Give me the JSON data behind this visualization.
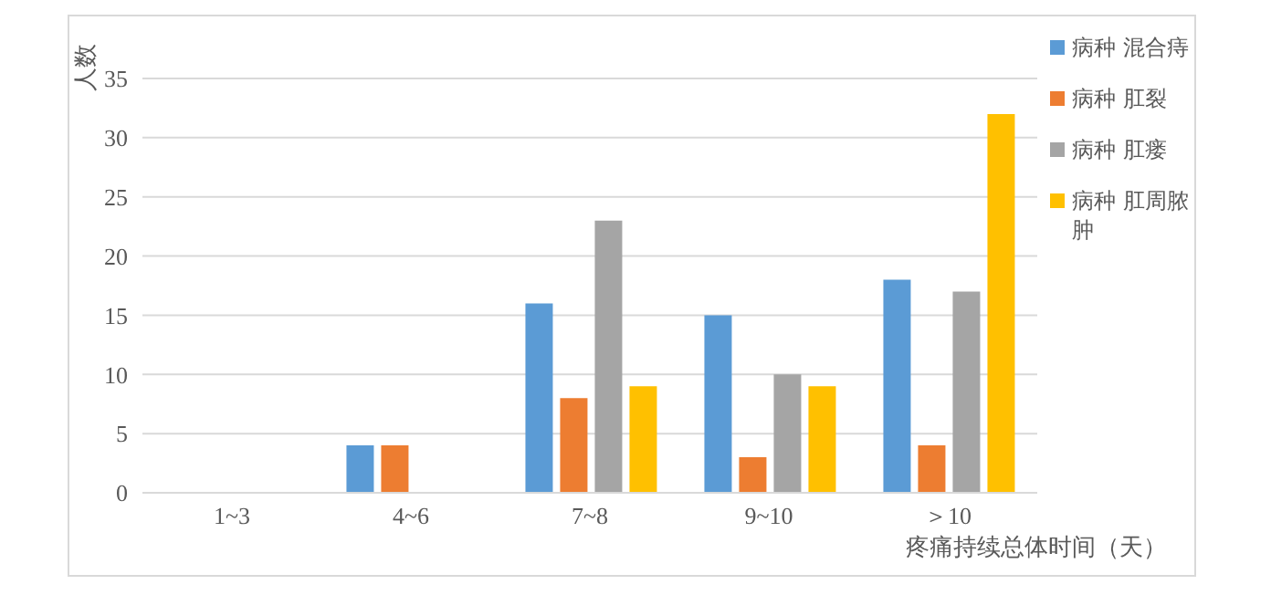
{
  "chart_data": {
    "type": "bar",
    "xlabel": "疼痛持续总体时间（天）",
    "ylabel": "人数",
    "categories": [
      "1~3",
      "4~6",
      "7~8",
      "9~10",
      "＞10"
    ],
    "series": [
      {
        "name": "病种 混合痔",
        "color": "#5b9bd5",
        "values": [
          null,
          4,
          16,
          15,
          18
        ]
      },
      {
        "name": "病种 肛裂",
        "color": "#ed7d31",
        "values": [
          null,
          4,
          8,
          3,
          4
        ]
      },
      {
        "name": "病种 肛瘘",
        "color": "#a5a5a5",
        "values": [
          null,
          null,
          23,
          10,
          17
        ]
      },
      {
        "name": "病种 肛周脓肿",
        "color": "#ffc000",
        "values": [
          null,
          null,
          9,
          9,
          32
        ]
      }
    ],
    "ylim": [
      0,
      35
    ],
    "yticks": [
      0,
      5,
      10,
      15,
      20,
      25,
      30,
      35
    ],
    "grid": "y",
    "legend": "right"
  }
}
